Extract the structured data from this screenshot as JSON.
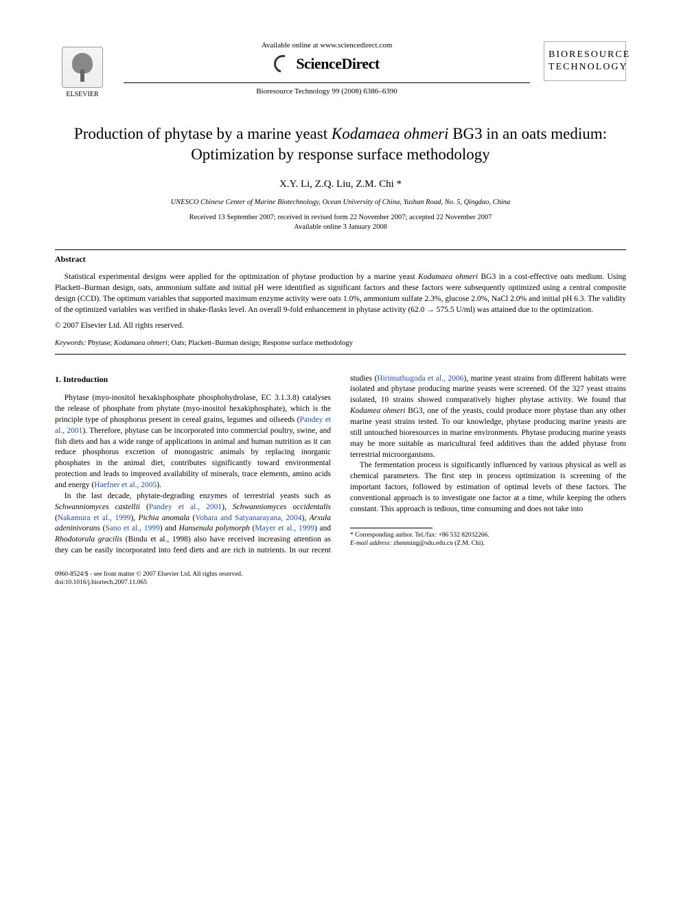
{
  "header": {
    "elsevier_label": "ELSEVIER",
    "available_online": "Available online at www.sciencedirect.com",
    "sciencedirect": "ScienceDirect",
    "journal_ref": "Bioresource Technology 99 (2008) 6386–6390",
    "journal_logo_line1": "BIORESOURCE",
    "journal_logo_line2": "TECHNOLOGY",
    "journal_logo_sub": ""
  },
  "title_pre": "Production of phytase by a marine yeast ",
  "title_ital": "Kodamaea ohmeri",
  "title_post": " BG3 in an oats medium: Optimization by response surface methodology",
  "authors": "X.Y. Li, Z.Q. Liu, Z.M. Chi *",
  "affiliation": "UNESCO Chinese Center of Marine Biotechnology, Ocean University of China, Yushan Road, No. 5, Qingdao, China",
  "dates_line1": "Received 13 September 2007; received in revised form 22 November 2007; accepted 22 November 2007",
  "dates_line2": "Available online 3 January 2008",
  "abstract_label": "Abstract",
  "abstract_p1a": "Statistical experimental designs were applied for the optimization of phytase production by a marine yeast ",
  "abstract_p1_ital": "Kodamaea ohmeri",
  "abstract_p1b": " BG3 in a cost-effective oats medium. Using Plackett–Burman design, oats, ammonium sulfate and initial pH were identified as significant factors and these factors were subsequently optimized using a central composite design (CCD). The optimum variables that supported maximum enzyme activity were oats 1.0%, ammonium sulfate 2.3%, glucose 2.0%, NaCl 2.0% and initial pH 6.3. The validity of the optimized variables was verified in shake-flasks level. An overall 9-fold enhancement in phytase activity (62.0 → 575.5 U/ml) was attained due to the optimization.",
  "copyright": "© 2007 Elsevier Ltd. All rights reserved.",
  "keywords_label": "Keywords:",
  "keywords_text": " Phytase; ",
  "keywords_ital": "Kodamaea ohmeri",
  "keywords_tail": "; Oats; Plackett–Burman design; Response surface methodology",
  "intro_heading": "1. Introduction",
  "intro_p1a": "Phytase (myo-inositol hexakisphosphate phosphohydrolase, EC 3.1.3.8) catalyses the release of phosphate from phytate (myo-inositol hexakiphosphate), which is the principle type of phosphorus present in cereal grains, legumes and oilseeds (",
  "intro_p1_cite1": "Pandey et al., 2001",
  "intro_p1b": "). Therefore, phytase can be incorporated into commercial poultry, swine, and fish diets and has a wide range of applications in animal and human nutrition as it can reduce phosphorus excretion of monogastric animals by replacing inorganic phosphates in the animal diet, contributes significantly toward environmental protection and leads to improved availability of minerals, trace elements, amino acids and energy (",
  "intro_p1_cite2": "Haefner et al., 2005",
  "intro_p1c": ").",
  "intro_p2a": "In the last decade, phytate-degrading enzymes of terrestrial yeasts such as ",
  "intro_p2_it1": "Schwanniomyces castellii",
  "intro_p2b": " (",
  "intro_p2_cite1": "Pandey et al., 2001",
  "intro_p2c": "), ",
  "intro_p2_it2": "Schwanniomyces occidentalis",
  "intro_p2d": " (",
  "intro_p2_cite2": "Nakamura et al., 1999",
  "intro_p2e": "), ",
  "intro_p2_it3": "Pichia anomala",
  "intro_p2f": " (",
  "intro_p2_cite3": "Vohara and Satyanarayana, 2004",
  "intro_p2g": "), ",
  "intro_p2_it4": "Arxula adeninivorans",
  "intro_p2h": " (",
  "intro_p2_cite4": "Sano et al., 1999",
  "intro_p2i": ") and ",
  "intro_p2_it5": "Hansenula polymorph",
  "intro_p2j": " (",
  "intro_p2_cite5": "Mayer et al., 1999",
  "intro_p2k": ") and ",
  "intro_p2_it6": "Rhodotorula gracilis",
  "intro_p2l": " (Bindu et al., 1998) also have received increasing attention as they can be easily incorporated into feed diets and are rich in nutrients. In our recent studies (",
  "intro_p2_cite6": "Hirimuthugoda et al., 2006",
  "intro_p2m": "), marine yeast strains from different habitats were isolated and phytase producing marine yeasts were screened. Of the 327 yeast strains isolated, 10 strains showed comparatively higher phytase activity. We found that ",
  "intro_p2_it7": "Kodamea ohmeri",
  "intro_p2n": " BG3, one of the yeasts, could produce more phytase than any other marine yeast strains tested. To our knowledge, phytase producing marine yeasts are still untouched bioresources in marine environments. Phytase producing marine yeasts may be more suitable as maricultural feed additives than the added phytase from terrestrial microorganisms.",
  "intro_p3": "The fermentation process is significantly influenced by various physical as well as chemical parameters. The first step in process optimization is screening of the important factors, followed by estimation of optimal levels of these factors. The conventional approach is to investigate one factor at a time, while keeping the others constant. This approach is tedious, time consuming and does not take into",
  "footnote_corr": "* Corresponding author. Tel./fax: +86 532 82032266.",
  "footnote_email_label": "E-mail address:",
  "footnote_email": " zhenming@sdu.edu.cn (Z.M. Chi).",
  "footer_line1": "0960-8524/$ - see front matter © 2007 Elsevier Ltd. All rights reserved.",
  "footer_line2": "doi:10.1016/j.biortech.2007.11.065",
  "colors": {
    "citation": "#1a4fa3",
    "text": "#000000",
    "background": "#ffffff"
  }
}
